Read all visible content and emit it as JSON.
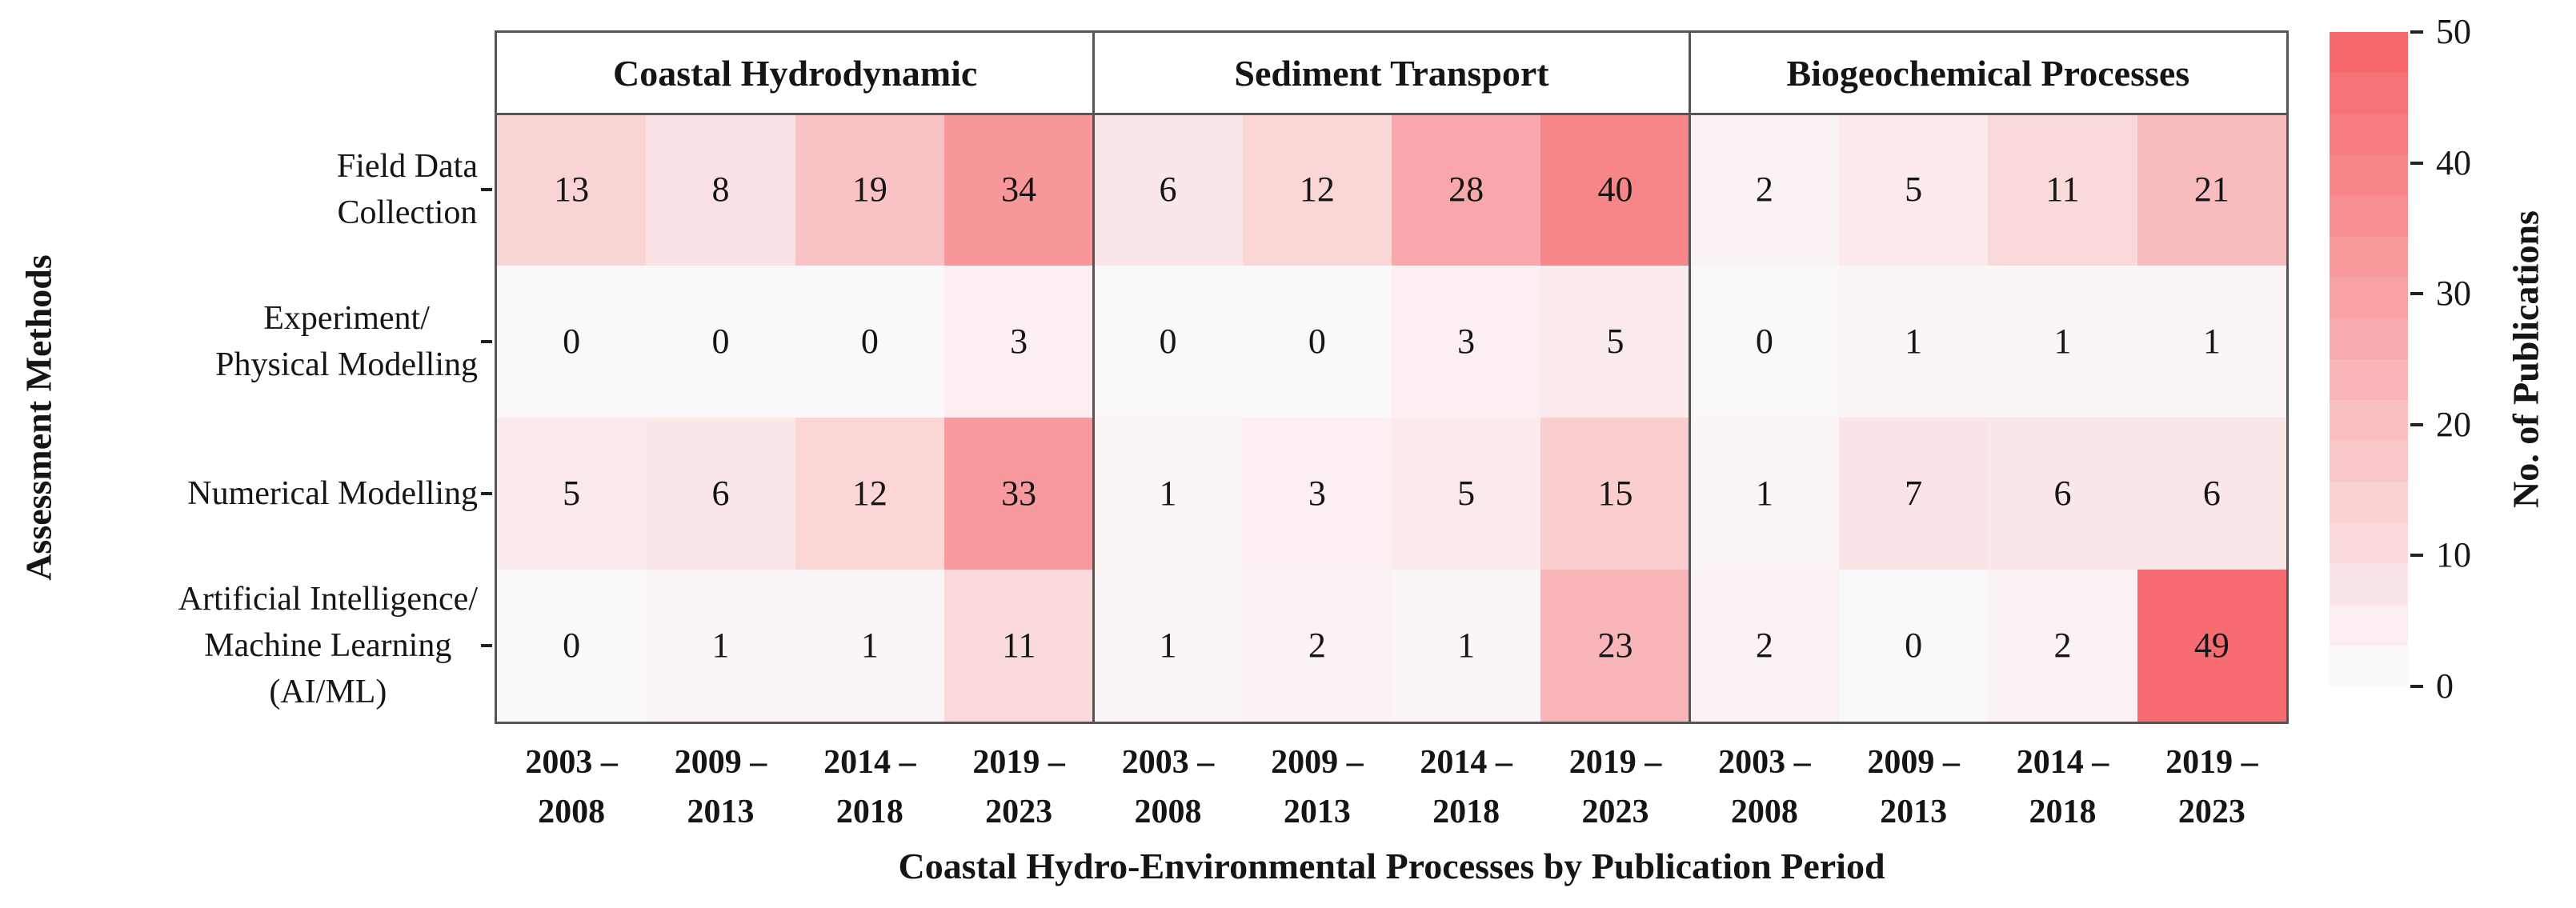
{
  "chart_data": {
    "type": "heatmap",
    "title": "",
    "xlabel": "Coastal Hydro-Environmental Processes by Publication Period",
    "ylabel": "Assessment Methods",
    "panels": [
      "Coastal Hydrodynamic",
      "Sediment Transport",
      "Biogeochemical Processes"
    ],
    "x_tick_lines": [
      [
        "2003 –",
        "2008"
      ],
      [
        "2009 –",
        "2013"
      ],
      [
        "2014 –",
        "2018"
      ],
      [
        "2019 –",
        "2023"
      ]
    ],
    "rows": [
      {
        "label_lines": [
          "Field Data",
          "Collection"
        ],
        "values": [
          [
            13,
            8,
            19,
            34
          ],
          [
            6,
            12,
            28,
            40
          ],
          [
            2,
            5,
            11,
            21
          ]
        ]
      },
      {
        "label_lines": [
          "Experiment/",
          "Physical Modelling"
        ],
        "values": [
          [
            0,
            0,
            0,
            3
          ],
          [
            0,
            0,
            3,
            5
          ],
          [
            0,
            1,
            1,
            1
          ]
        ]
      },
      {
        "label_lines": [
          "Numerical Modelling"
        ],
        "values": [
          [
            5,
            6,
            12,
            33
          ],
          [
            1,
            3,
            5,
            15
          ],
          [
            1,
            7,
            6,
            6
          ]
        ]
      },
      {
        "label_lines": [
          "Artificial Intelligence/",
          "Machine Learning",
          "(AI/ML)"
        ],
        "values": [
          [
            0,
            1,
            1,
            11
          ],
          [
            1,
            2,
            1,
            23
          ],
          [
            2,
            0,
            2,
            49
          ]
        ]
      }
    ],
    "vmin": 0,
    "vmax": 50,
    "colors": {
      "low": "#fbf8f9",
      "high": "#f6696d"
    },
    "grid": false,
    "legend_position": "right"
  },
  "colorbar": {
    "label": "No. of Publications",
    "ticks": [
      0,
      10,
      20,
      30,
      40,
      50
    ],
    "steps": 16
  }
}
